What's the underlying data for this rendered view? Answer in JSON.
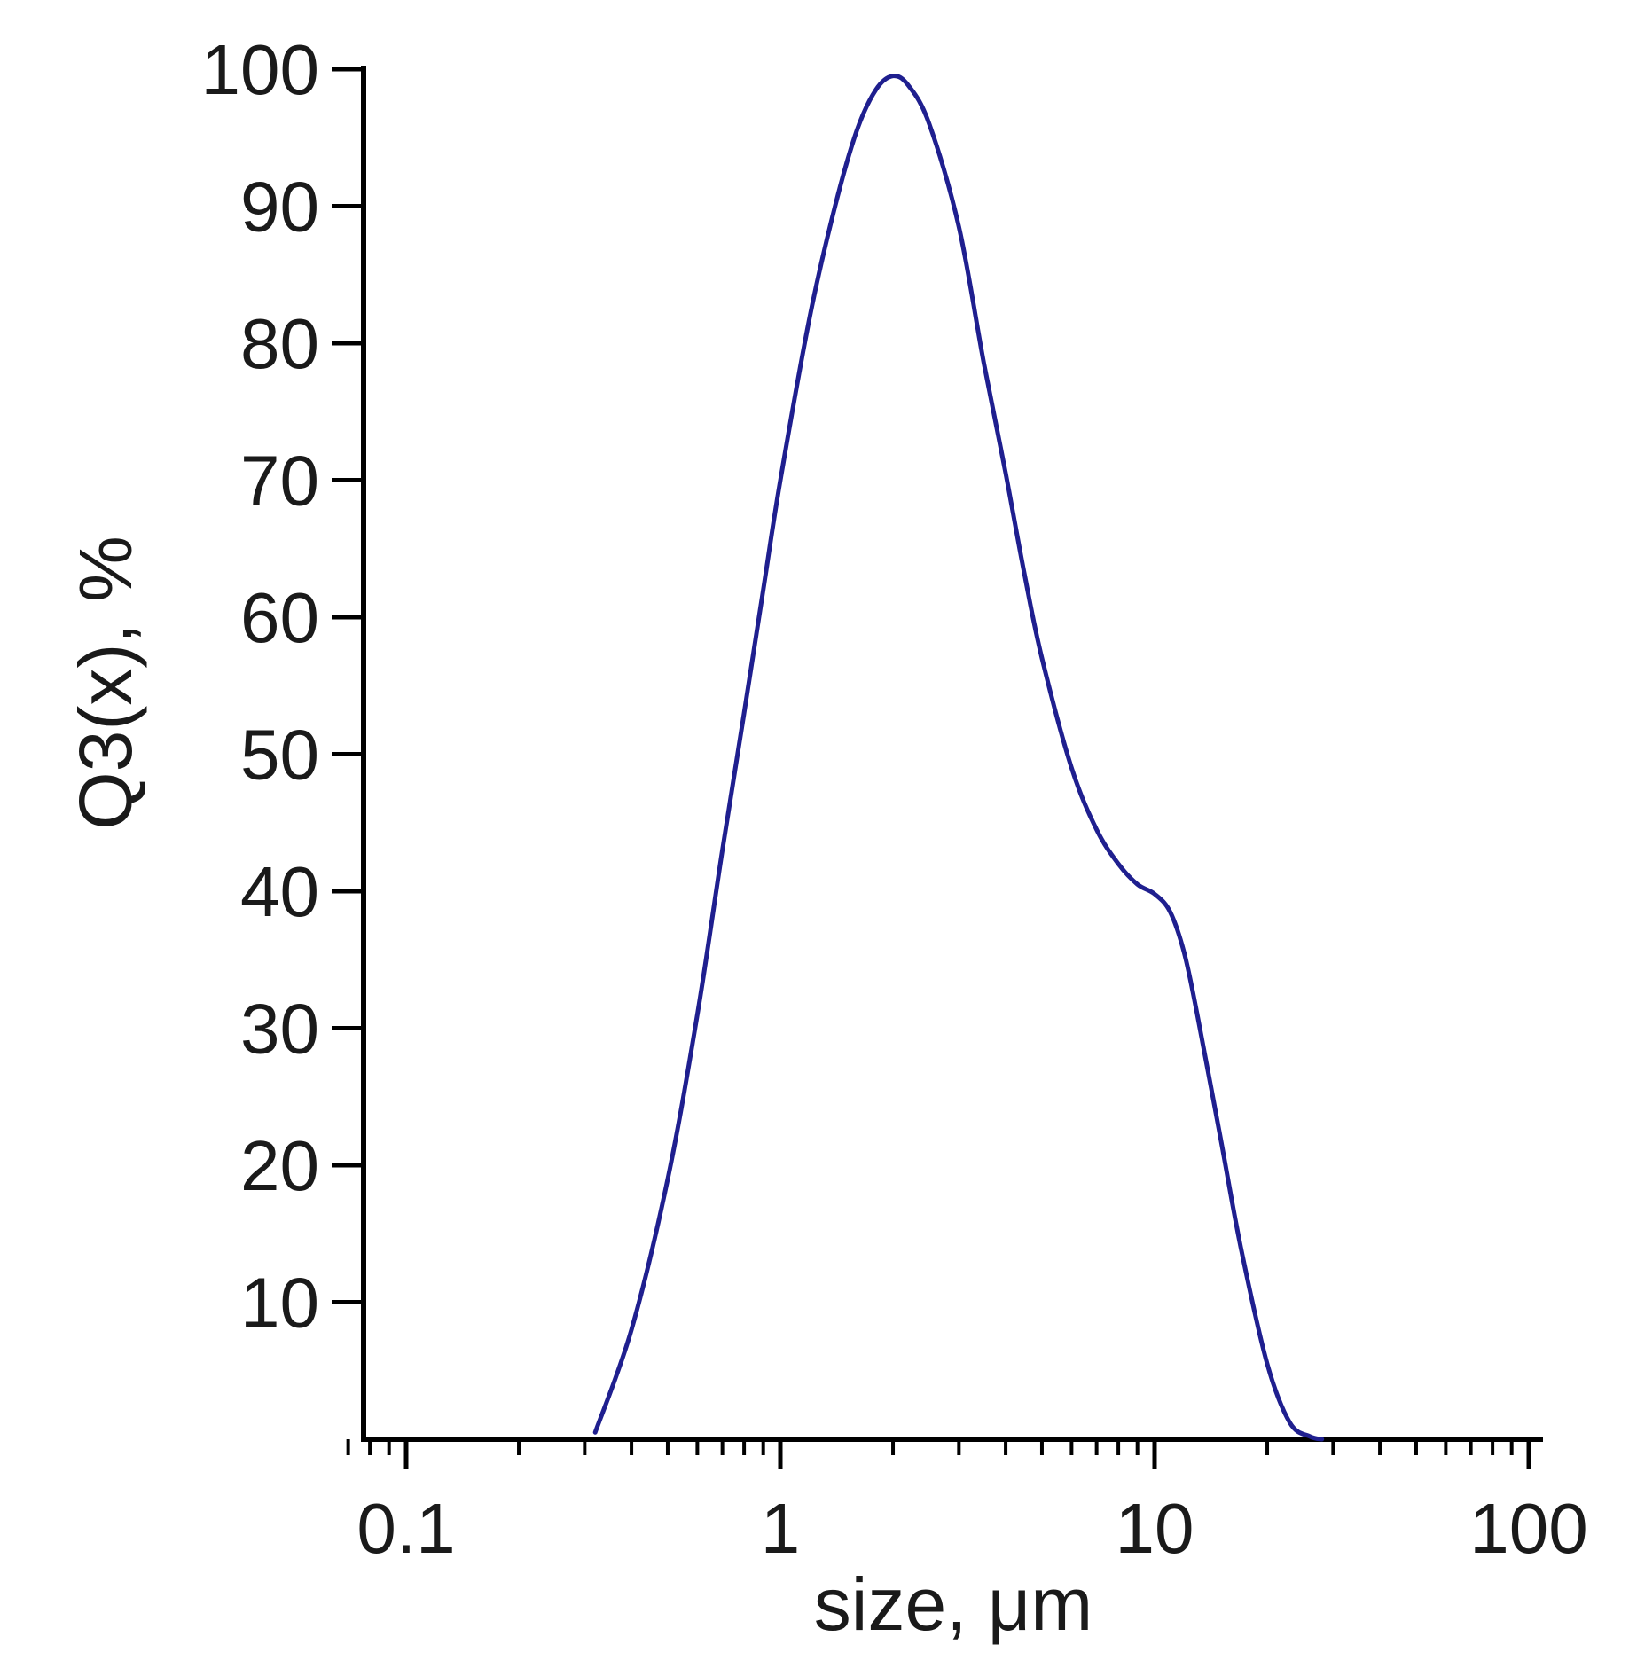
{
  "chart_data": {
    "type": "line",
    "title": "",
    "xlabel": "size, μm",
    "ylabel": "Q3(x), %",
    "xscale": "log",
    "xlim": [
      0.07,
      100
    ],
    "ylim": [
      0,
      100
    ],
    "x_ticks": [
      0.1,
      1,
      10,
      100
    ],
    "x_tick_labels": [
      "0.1",
      "1",
      "10",
      "100"
    ],
    "y_ticks": [
      10,
      20,
      30,
      40,
      50,
      60,
      70,
      80,
      90,
      100
    ],
    "y_tick_labels": [
      "10",
      "20",
      "30",
      "40",
      "50",
      "60",
      "70",
      "80",
      "90",
      "100"
    ],
    "grid": false,
    "line_color": "#1f1f8f",
    "series": [
      {
        "x": [
          0.32,
          0.4,
          0.5,
          0.6,
          0.7,
          0.8,
          0.9,
          1.0,
          1.2,
          1.4,
          1.6,
          1.8,
          2.0,
          2.2,
          2.5,
          3.0,
          3.5,
          4.0,
          4.5,
          5.0,
          6.0,
          7.0,
          8.0,
          9.0,
          10.0,
          11.0,
          12.0,
          13.0,
          15.0,
          17.0,
          20.0,
          23.0,
          26.0,
          28.0
        ],
        "y": [
          0.5,
          8,
          19,
          31,
          43,
          53,
          62,
          70,
          82,
          90,
          95.5,
          98.5,
          99.5,
          98.8,
          96,
          88.5,
          78.5,
          70.5,
          63,
          57,
          49,
          44.5,
          42,
          40.5,
          39.8,
          38.5,
          35.5,
          31,
          22,
          14,
          5.5,
          1.2,
          0.2,
          0
        ]
      }
    ]
  }
}
